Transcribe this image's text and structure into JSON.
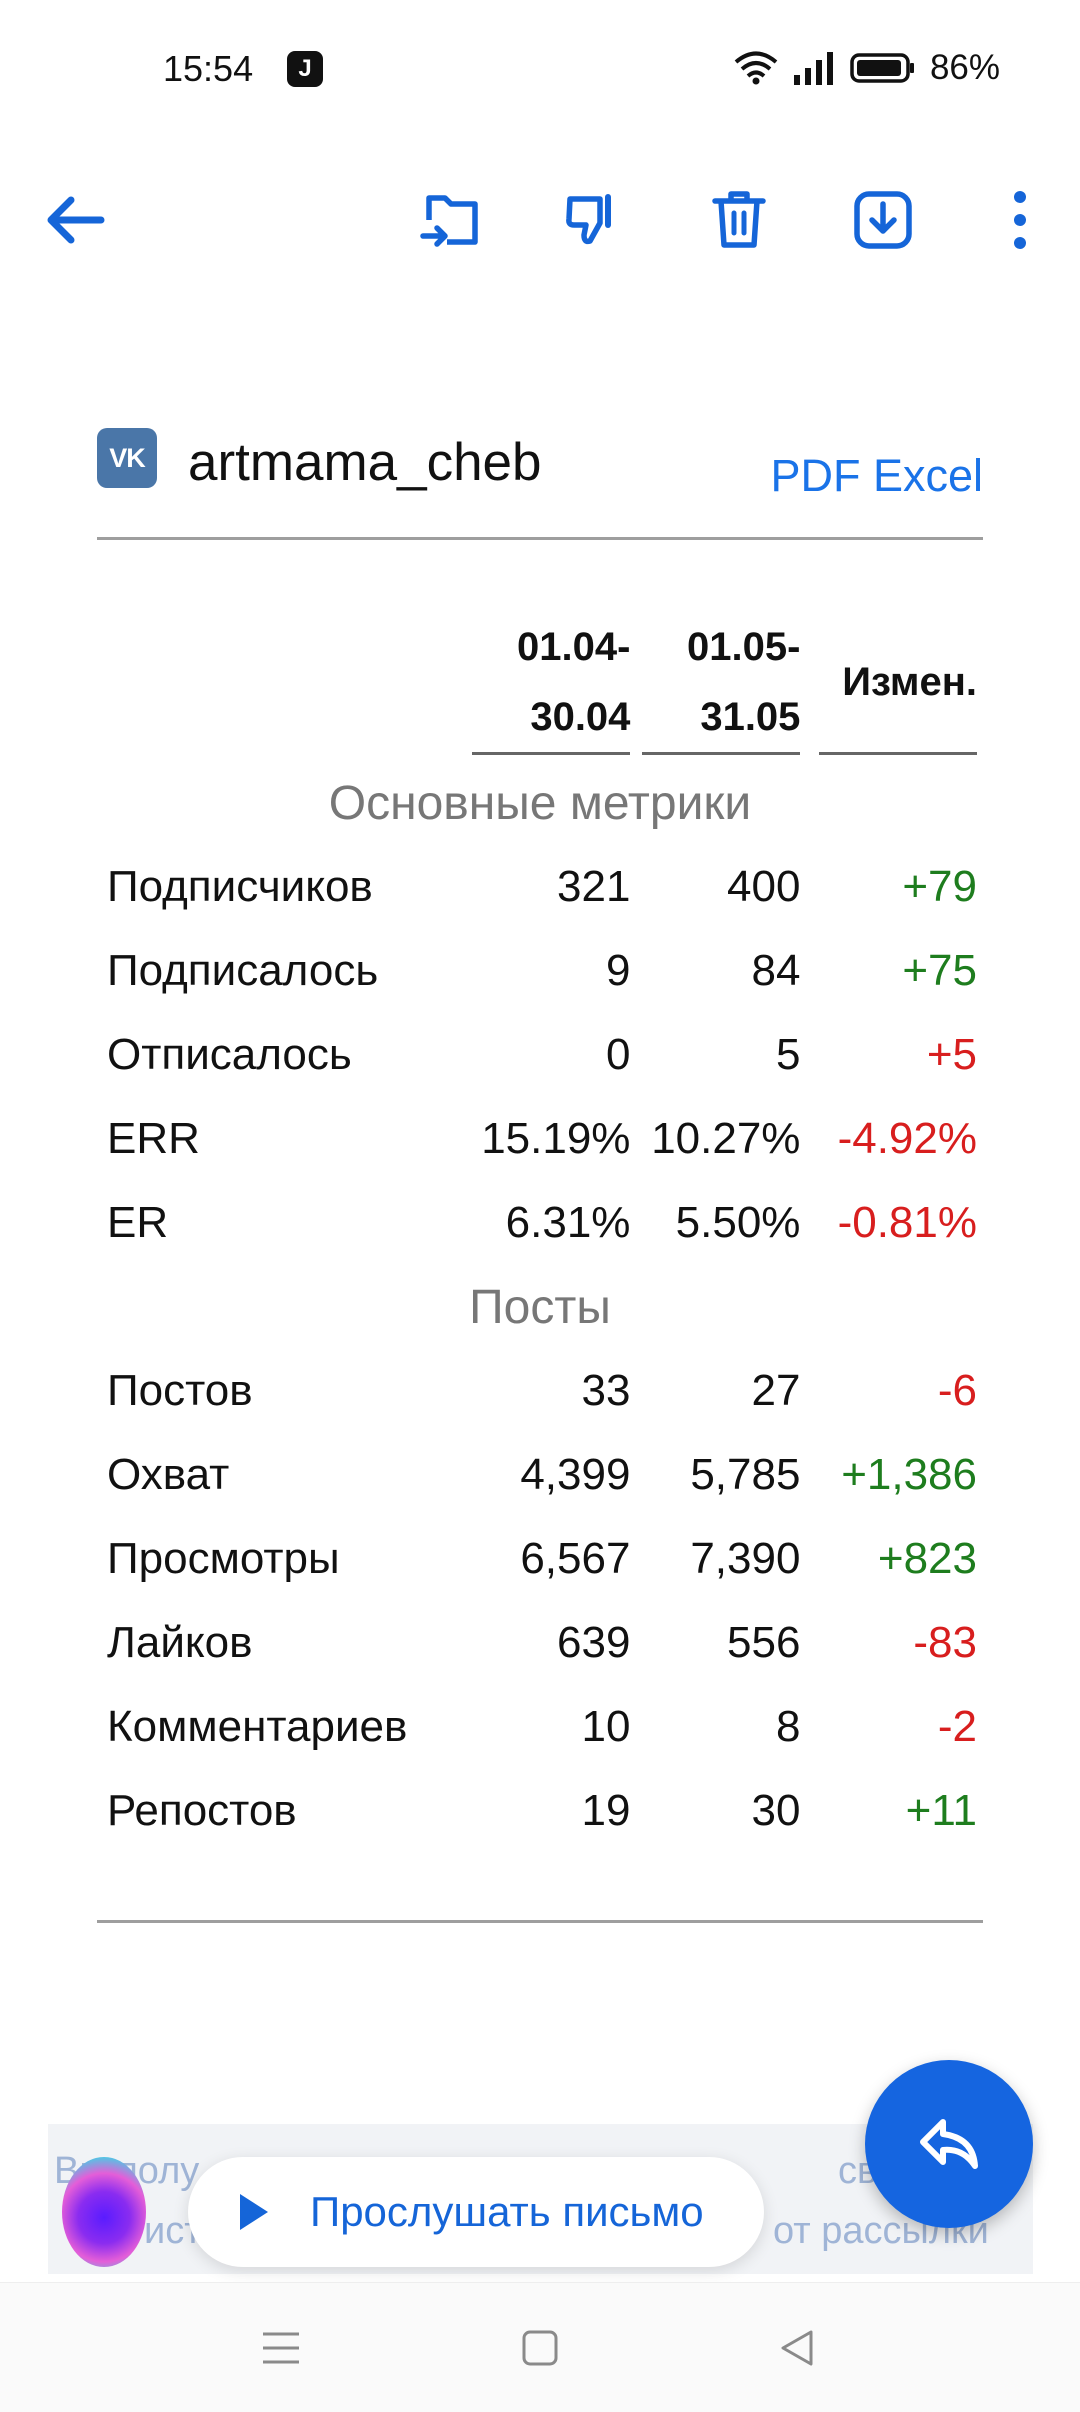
{
  "status_bar": {
    "time": "15:54",
    "app_badge": "J",
    "battery": "86%"
  },
  "toolbar": {
    "back_icon": "arrow-left-icon",
    "actions": [
      "move-to-folder-icon",
      "thumbs-down-icon",
      "trash-icon",
      "download-icon",
      "more-vertical-icon"
    ],
    "accent_color": "#1565d8"
  },
  "email": {
    "sender_icon": "VK",
    "sender_name": "artmama_cheb",
    "export_pdf": "PDF",
    "export_excel": "Excel",
    "table": {
      "headers": {
        "period1_line1": "01.04-",
        "period1_line2": "30.04",
        "period2_line1": "01.05-",
        "period2_line2": "31.05",
        "change": "Измен."
      },
      "section_main": "Основные метрики",
      "section_posts": "Посты",
      "main_rows": [
        {
          "label": "Подписчиков",
          "p1": "321",
          "p2": "400",
          "change": "+79",
          "sign": "pos"
        },
        {
          "label": "Подписалось",
          "p1": "9",
          "p2": "84",
          "change": "+75",
          "sign": "pos"
        },
        {
          "label": "Отписалось",
          "p1": "0",
          "p2": "5",
          "change": "+5",
          "sign": "neg"
        },
        {
          "label": "ERR",
          "p1": "15.19%",
          "p2": "10.27%",
          "change": "-4.92%",
          "sign": "neg"
        },
        {
          "label": "ER",
          "p1": "6.31%",
          "p2": "5.50%",
          "change": "-0.81%",
          "sign": "neg"
        }
      ],
      "post_rows": [
        {
          "label": "Постов",
          "p1": "33",
          "p2": "27",
          "change": "-6",
          "sign": "neg"
        },
        {
          "label": "Охват",
          "p1": "4,399",
          "p2": "5,785",
          "change": "+1,386",
          "sign": "pos"
        },
        {
          "label": "Просмотры",
          "p1": "6,567",
          "p2": "7,390",
          "change": "+823",
          "sign": "pos"
        },
        {
          "label": "Лайков",
          "p1": "639",
          "p2": "556",
          "change": "-83",
          "sign": "neg"
        },
        {
          "label": "Комментариев",
          "p1": "10",
          "p2": "8",
          "change": "-2",
          "sign": "neg"
        },
        {
          "label": "Репостов",
          "p1": "19",
          "p2": "30",
          "change": "+11",
          "sign": "pos"
        }
      ]
    },
    "footer_line1_left": "Вы полу",
    "footer_line1_right": "свой E-",
    "footer_line2_left": "ист",
    "footer_line2_right": "от рассылки"
  },
  "listen": {
    "label": "Прослушать письмо"
  },
  "fab": {
    "icon": "reply-icon"
  },
  "nav": {
    "items": [
      "menu-icon",
      "home-icon",
      "back-triangle-icon"
    ]
  }
}
